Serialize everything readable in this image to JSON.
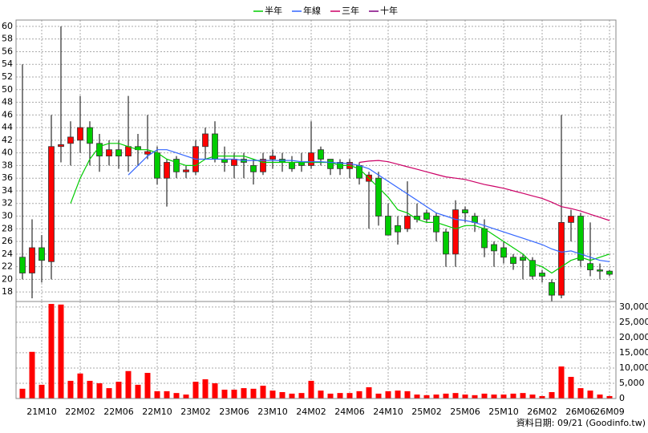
{
  "chart_data": {
    "type": "candlestick",
    "categories": [
      null,
      null,
      "21M10",
      null,
      null,
      null,
      "22M02",
      null,
      null,
      null,
      "22M06",
      null,
      null,
      null,
      "22M10",
      null,
      null,
      null,
      "23M02",
      null,
      null,
      null,
      "23M06",
      null,
      null,
      null,
      "23M10",
      null,
      null,
      null,
      "24M02",
      null,
      null,
      null,
      "24M06",
      null,
      null,
      null,
      "24M10",
      null,
      null,
      null,
      "25M02",
      null,
      null,
      null,
      "25M06",
      null,
      null,
      null,
      "25M10",
      null,
      null,
      null,
      "26M02",
      null,
      null,
      null,
      "26M06",
      null,
      null,
      "26M09"
    ],
    "open": [
      23.5,
      21,
      25,
      22.8,
      41,
      41.5,
      42,
      44,
      41.5,
      39.5,
      40.5,
      39.5,
      41,
      39.8,
      40,
      36,
      39,
      37,
      37,
      41,
      43,
      39,
      38,
      39,
      38,
      37,
      39,
      39,
      38.5,
      38.5,
      38,
      40.5,
      39,
      38.5,
      37.5,
      38,
      35.5,
      36,
      30,
      28.5,
      28,
      30,
      30.5,
      30,
      27.5,
      24,
      31,
      30,
      28,
      25.5,
      25,
      23.5,
      23.5,
      23,
      21,
      19.5,
      17.5,
      29,
      30,
      22.5,
      21.5,
      21.3
    ],
    "high": [
      54,
      29.5,
      27,
      46,
      60,
      45,
      49,
      45,
      43,
      42,
      42,
      49,
      43,
      46,
      41,
      39,
      39.5,
      38,
      42,
      44,
      45,
      41,
      40,
      40,
      39,
      40,
      40.5,
      40,
      39.5,
      40,
      45,
      41,
      39,
      39,
      39,
      38.5,
      37,
      37,
      32,
      30,
      35.5,
      32,
      31,
      30.5,
      28,
      32.5,
      31.5,
      30.5,
      29.5,
      26,
      26,
      24,
      24,
      23.5,
      21.5,
      20,
      46,
      31,
      30.5,
      29,
      22.5,
      21.5
    ],
    "low": [
      20,
      17,
      19.5,
      20,
      38.5,
      38,
      40,
      38,
      37,
      38,
      37.5,
      37,
      38,
      39,
      35,
      31.5,
      36,
      36,
      36.5,
      39,
      38.5,
      37,
      36,
      36,
      35,
      36.5,
      37.5,
      37,
      37,
      37,
      37.5,
      38,
      36.5,
      36.5,
      36,
      35,
      28,
      28.5,
      27,
      25.5,
      27.5,
      29,
      29,
      26,
      22,
      22,
      29,
      27.5,
      23.5,
      22,
      22.5,
      21.5,
      20,
      20,
      19.5,
      16.5,
      17,
      26,
      22,
      20.5,
      20,
      20.5
    ],
    "close": [
      21,
      25,
      23,
      41,
      41.3,
      42.5,
      44,
      41.5,
      39.5,
      40.5,
      39.5,
      41,
      40.5,
      40.2,
      36,
      38.5,
      37,
      37.3,
      41,
      43,
      39,
      38.5,
      39,
      38.5,
      37,
      39,
      39.5,
      38.5,
      37.5,
      38,
      40,
      39,
      37.5,
      37.5,
      38.5,
      36,
      36.5,
      30,
      27,
      27.5,
      30,
      29.5,
      29.5,
      27.5,
      24,
      31,
      30.5,
      29,
      25,
      24.5,
      23.5,
      22.5,
      23,
      20.5,
      20.5,
      17.5,
      29,
      30,
      23,
      21.5,
      21.3,
      20.8
    ],
    "volume": [
      3200,
      15300,
      4500,
      31000,
      30800,
      5800,
      8200,
      5800,
      5000,
      3400,
      5500,
      9000,
      4500,
      8400,
      2400,
      2400,
      1800,
      1300,
      5500,
      6300,
      5000,
      2900,
      2900,
      3400,
      3200,
      4200,
      2600,
      2100,
      1600,
      1800,
      5800,
      2600,
      1600,
      1800,
      1800,
      2400,
      3700,
      1600,
      2400,
      2600,
      2400,
      1300,
      1100,
      1300,
      1600,
      1800,
      1300,
      1100,
      1600,
      1300,
      1300,
      1600,
      1800,
      1300,
      800,
      2100,
      10500,
      7100,
      3400,
      2600,
      1300,
      800
    ],
    "up_color": "#ff0000",
    "down_color": "#00cc00",
    "volume_color": "#ff0000",
    "series": [
      {
        "name": "半年",
        "color": "#00cc00",
        "values": [
          null,
          null,
          null,
          null,
          null,
          32,
          36,
          39,
          41,
          41.5,
          41.5,
          41,
          40.5,
          40.5,
          40,
          39,
          38.5,
          38,
          38,
          39,
          39.5,
          39.5,
          39.5,
          39.5,
          39,
          38.5,
          38.5,
          38.5,
          38.5,
          38.5,
          38.5,
          38.5,
          38.5,
          38,
          38,
          37.5,
          36,
          34.5,
          33,
          31,
          30.5,
          29.5,
          29,
          29,
          28.5,
          28,
          28.5,
          28.5,
          28,
          27,
          26,
          25,
          24,
          22.5,
          22,
          21,
          22,
          23,
          23.5,
          23,
          23.5,
          24
        ]
      },
      {
        "name": "年線",
        "color": "#3366ff",
        "values": [
          null,
          null,
          null,
          null,
          null,
          null,
          null,
          null,
          null,
          null,
          null,
          36.5,
          38,
          39.5,
          40.5,
          40.5,
          40,
          39.5,
          39,
          39,
          39,
          39,
          39,
          38.8,
          38.8,
          38.8,
          38.8,
          38.8,
          38.8,
          38.6,
          38.6,
          38.6,
          38.5,
          38.4,
          38.3,
          38,
          37.5,
          36.5,
          35.5,
          34.5,
          33.5,
          32.5,
          31.5,
          30.5,
          30,
          29.5,
          29.3,
          29,
          28.5,
          28,
          27.5,
          27,
          26.5,
          26,
          25.5,
          24.8,
          24.3,
          24.5,
          24,
          23.5,
          23,
          22.8
        ]
      },
      {
        "name": "三年",
        "color": "#cc0066",
        "values": [
          null,
          null,
          null,
          null,
          null,
          null,
          null,
          null,
          null,
          null,
          null,
          null,
          null,
          null,
          null,
          null,
          null,
          null,
          null,
          null,
          null,
          null,
          null,
          null,
          null,
          null,
          null,
          null,
          null,
          null,
          null,
          null,
          null,
          null,
          null,
          38.5,
          38.7,
          38.8,
          38.6,
          38.2,
          37.8,
          37.4,
          37,
          36.6,
          36.2,
          36,
          35.8,
          35.4,
          35,
          34.7,
          34.4,
          34,
          33.6,
          33.2,
          32.8,
          32.2,
          31.5,
          31.2,
          30.8,
          30.3,
          29.8,
          29.3
        ]
      },
      {
        "name": "十年",
        "color": "#800080",
        "values": [
          null,
          null,
          null,
          null,
          null,
          null,
          null,
          null,
          null,
          null,
          null,
          null,
          null,
          null,
          null,
          null,
          null,
          null,
          null,
          null,
          null,
          null,
          null,
          null,
          null,
          null,
          null,
          null,
          null,
          null,
          null,
          null,
          null,
          null,
          null,
          null,
          null,
          null,
          null,
          null,
          null,
          null,
          null,
          null,
          null,
          null,
          null,
          null,
          null,
          null,
          null,
          null,
          null,
          null,
          null,
          null,
          null,
          null,
          null,
          null,
          null,
          null
        ]
      }
    ],
    "ylim": [
      16.5,
      61
    ],
    "yticks": [
      18,
      20,
      22,
      24,
      26,
      28,
      30,
      32,
      34,
      36,
      38,
      40,
      42,
      44,
      46,
      48,
      50,
      52,
      54,
      56,
      58,
      60
    ],
    "y2lim": [
      0,
      31800
    ],
    "y2ticks": [
      0,
      {
        "value": 5000,
        "label": "5,000"
      },
      {
        "value": 10000,
        "label": "10,000"
      },
      {
        "value": 15000,
        "label": "15,000"
      },
      {
        "value": 20000,
        "label": "20,000"
      },
      {
        "value": 25000,
        "label": "25,000"
      },
      {
        "value": 30000,
        "label": "30,000"
      }
    ],
    "grid": true,
    "legend": "top",
    "annotation": "資料日期: 09/21  (Goodinfo.tw)"
  }
}
